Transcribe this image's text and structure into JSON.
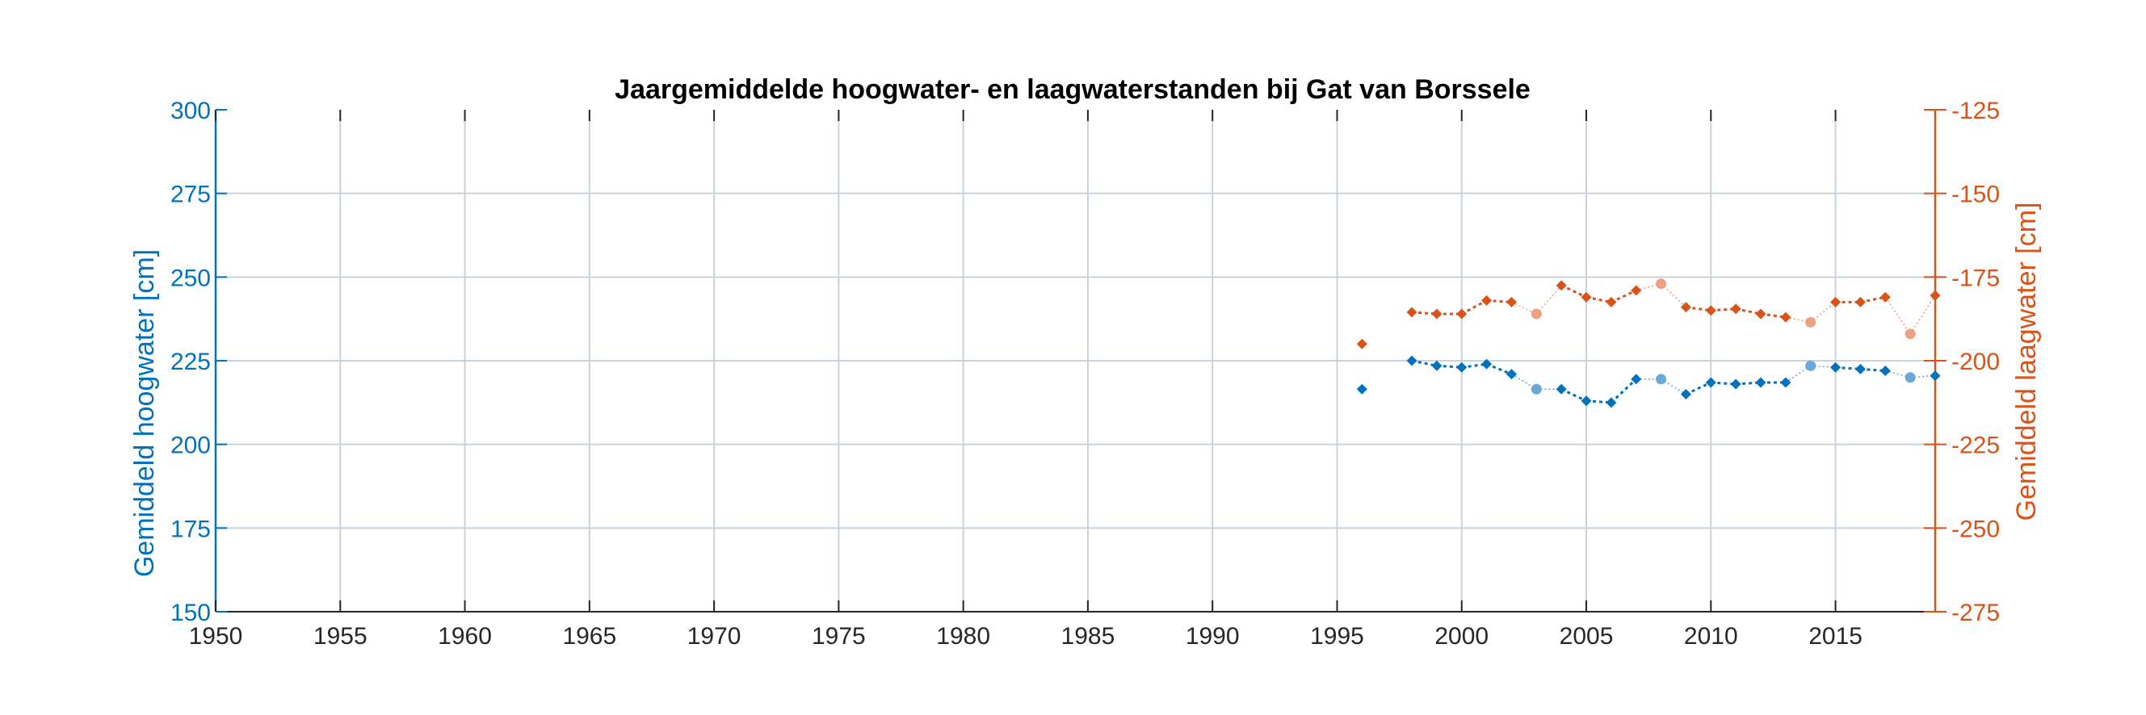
{
  "chart_data": {
    "type": "line",
    "title": "Jaargemiddelde hoogwater- en laagwaterstanden bij Gat van Borssele",
    "xlabel": "",
    "ylabel_left": "Gemiddeld hoogwater [cm]",
    "ylabel_right": "Gemiddeld laagwater [cm]",
    "xlim": [
      1950,
      2019
    ],
    "ylim_left": [
      150,
      300
    ],
    "ylim_right": [
      -275,
      -125
    ],
    "x_ticks": [
      1950,
      1955,
      1960,
      1965,
      1970,
      1975,
      1980,
      1985,
      1990,
      1995,
      2000,
      2005,
      2010,
      2015
    ],
    "y_ticks_left": [
      150,
      175,
      200,
      225,
      250,
      275,
      300
    ],
    "y_ticks_right": [
      -275,
      -250,
      -225,
      -200,
      -175,
      -150,
      -125
    ],
    "grid": true,
    "colors": {
      "left": "#0072BD",
      "left_light": "#6aa8d8",
      "right": "#D95319",
      "right_light": "#eea083",
      "grid": "#c8d2dc",
      "axis": "#262626"
    },
    "series": [
      {
        "name": "",
        "axis": "left",
        "points": [
          {
            "x": 1996,
            "y": 216.5,
            "faded": false
          },
          {
            "x": 1998,
            "y": 225,
            "faded": false
          },
          {
            "x": 1999,
            "y": 223.5,
            "faded": false
          },
          {
            "x": 2000,
            "y": 223,
            "faded": false
          },
          {
            "x": 2001,
            "y": 224,
            "faded": false
          },
          {
            "x": 2002,
            "y": 221,
            "faded": false
          },
          {
            "x": 2003,
            "y": 216.5,
            "faded": true
          },
          {
            "x": 2004,
            "y": 216.5,
            "faded": false
          },
          {
            "x": 2005,
            "y": 213,
            "faded": false
          },
          {
            "x": 2006,
            "y": 212.5,
            "faded": false
          },
          {
            "x": 2007,
            "y": 219.5,
            "faded": false
          },
          {
            "x": 2008,
            "y": 219.5,
            "faded": true
          },
          {
            "x": 2009,
            "y": 215,
            "faded": false
          },
          {
            "x": 2010,
            "y": 218.5,
            "faded": false
          },
          {
            "x": 2011,
            "y": 218,
            "faded": false
          },
          {
            "x": 2012,
            "y": 218.5,
            "faded": false
          },
          {
            "x": 2013,
            "y": 218.5,
            "faded": false
          },
          {
            "x": 2014,
            "y": 223.5,
            "faded": true
          },
          {
            "x": 2015,
            "y": 223,
            "faded": false
          },
          {
            "x": 2016,
            "y": 222.5,
            "faded": false
          },
          {
            "x": 2017,
            "y": 222,
            "faded": false
          },
          {
            "x": 2018,
            "y": 220,
            "faded": true
          },
          {
            "x": 2019,
            "y": 220.5,
            "faded": false
          }
        ]
      },
      {
        "name": "",
        "axis": "right",
        "points": [
          {
            "x": 1996,
            "y": -195,
            "faded": false
          },
          {
            "x": 1998,
            "y": -185.5,
            "faded": false
          },
          {
            "x": 1999,
            "y": -186,
            "faded": false
          },
          {
            "x": 2000,
            "y": -186,
            "faded": false
          },
          {
            "x": 2001,
            "y": -182,
            "faded": false
          },
          {
            "x": 2002,
            "y": -182.5,
            "faded": false
          },
          {
            "x": 2003,
            "y": -186,
            "faded": true
          },
          {
            "x": 2004,
            "y": -177.5,
            "faded": false
          },
          {
            "x": 2005,
            "y": -181,
            "faded": false
          },
          {
            "x": 2006,
            "y": -182.5,
            "faded": false
          },
          {
            "x": 2007,
            "y": -179,
            "faded": false
          },
          {
            "x": 2008,
            "y": -177,
            "faded": true
          },
          {
            "x": 2009,
            "y": -184,
            "faded": false
          },
          {
            "x": 2010,
            "y": -185,
            "faded": false
          },
          {
            "x": 2011,
            "y": -184.5,
            "faded": false
          },
          {
            "x": 2012,
            "y": -186,
            "faded": false
          },
          {
            "x": 2013,
            "y": -187,
            "faded": false
          },
          {
            "x": 2014,
            "y": -188.5,
            "faded": true
          },
          {
            "x": 2015,
            "y": -182.5,
            "faded": false
          },
          {
            "x": 2016,
            "y": -182.5,
            "faded": false
          },
          {
            "x": 2017,
            "y": -181,
            "faded": false
          },
          {
            "x": 2018,
            "y": -192,
            "faded": true
          },
          {
            "x": 2019,
            "y": -180.5,
            "faded": false
          }
        ]
      }
    ]
  }
}
